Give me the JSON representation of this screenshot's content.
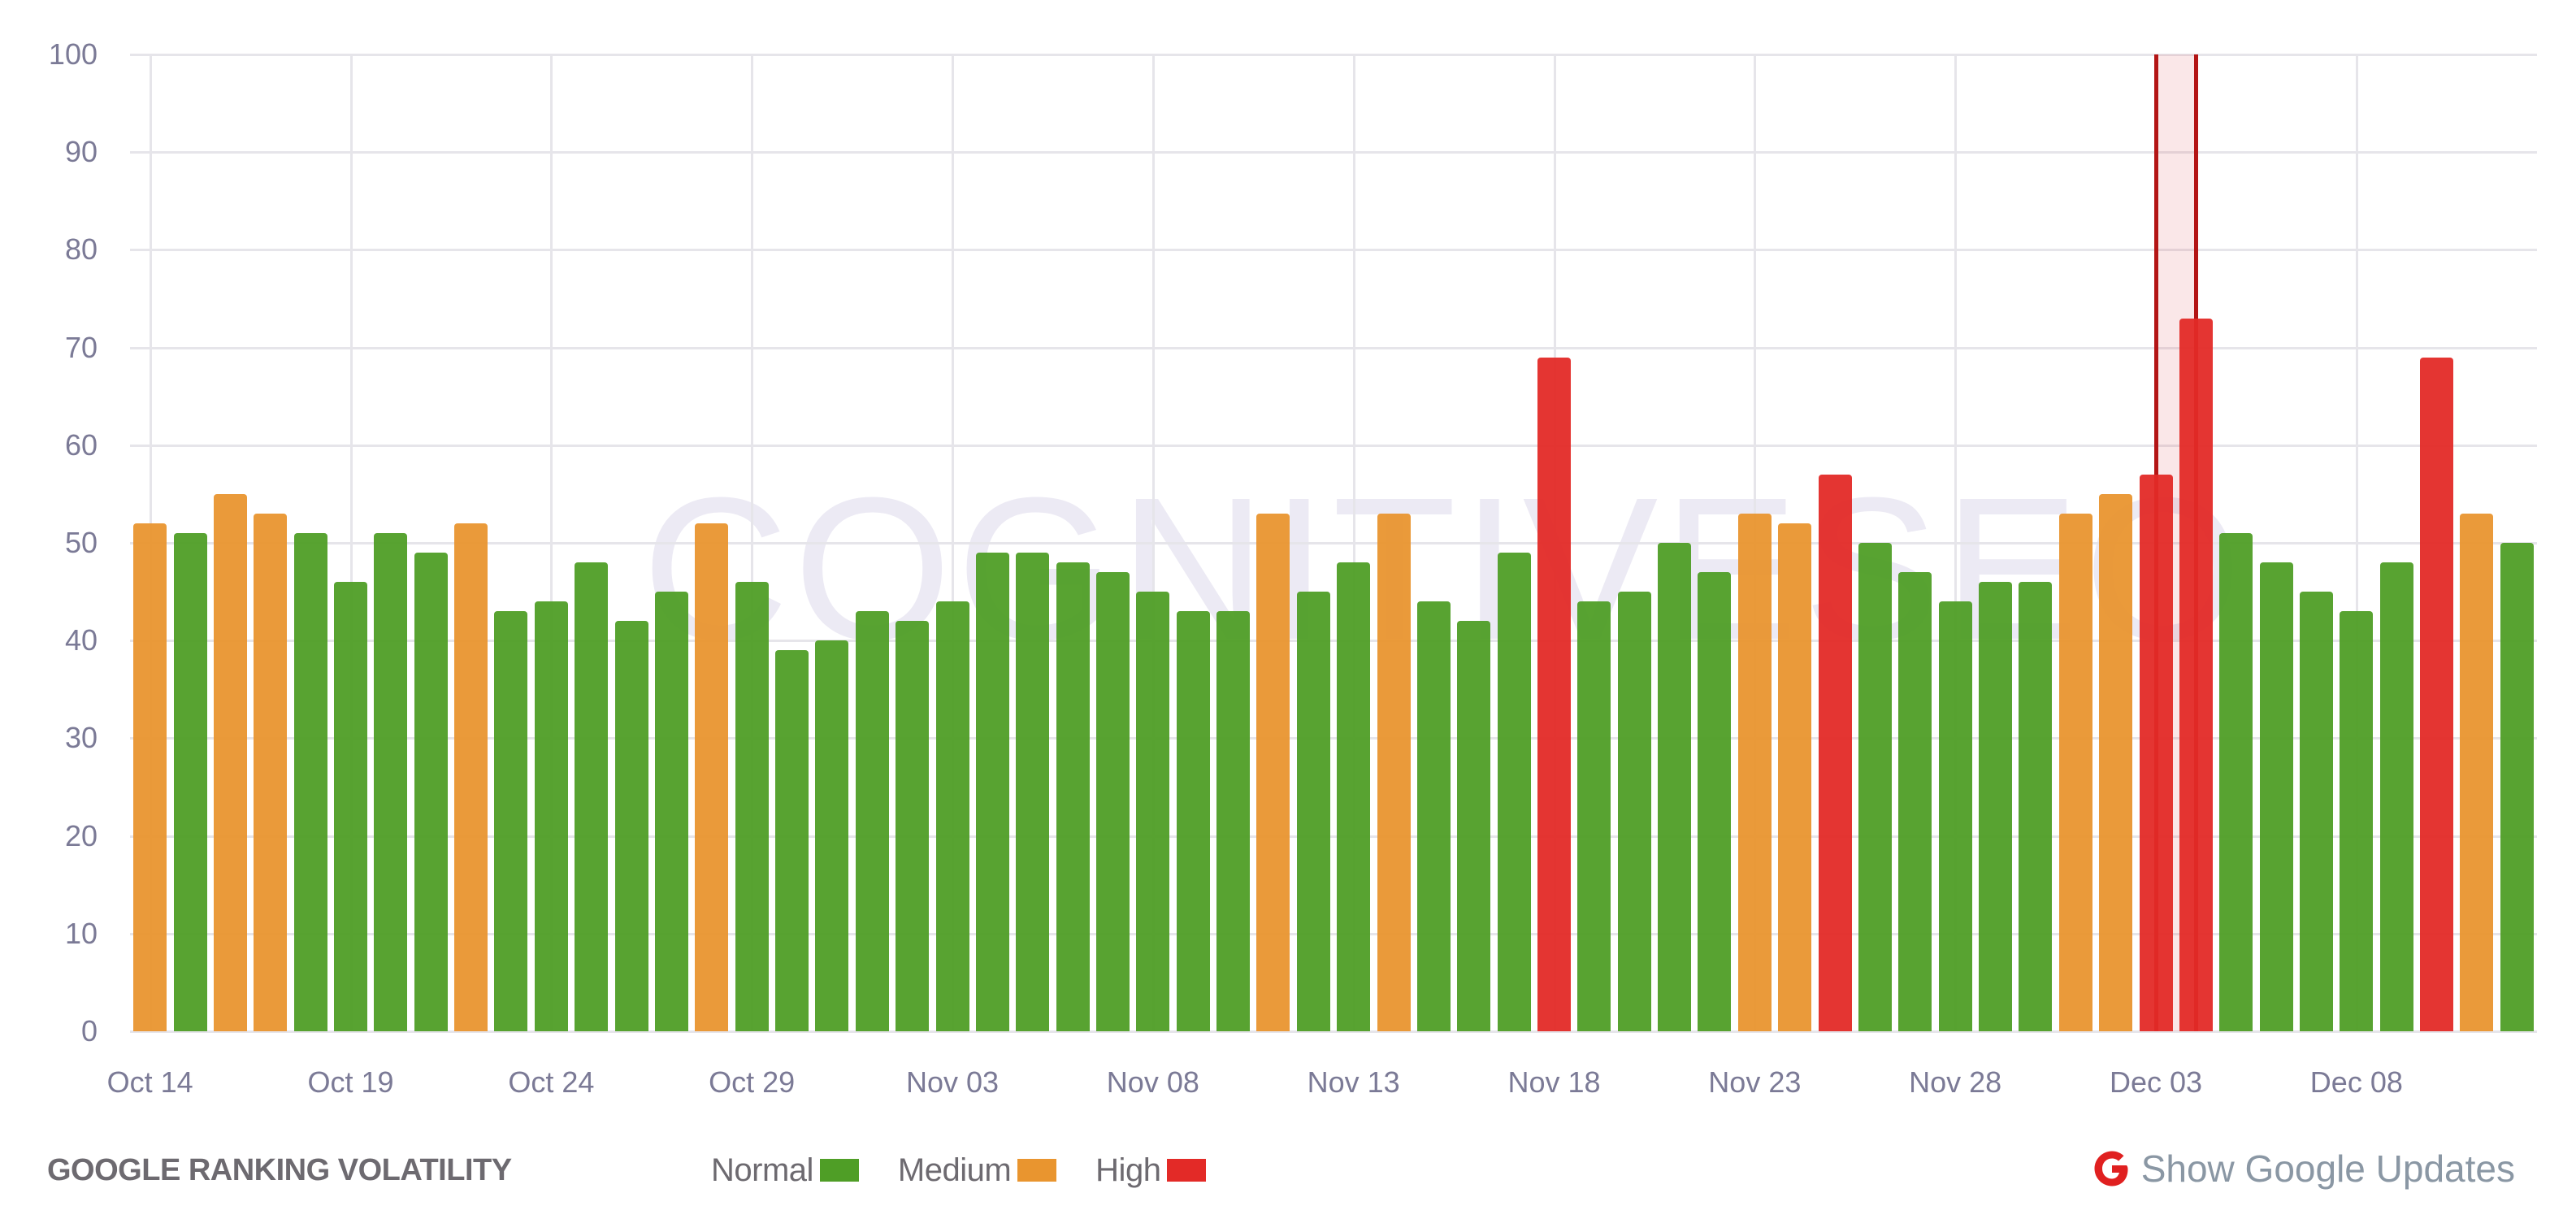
{
  "chart_data": {
    "type": "bar",
    "title": "GOOGLE RANKING VOLATILITY",
    "xlabel": "",
    "ylabel": "",
    "ylim": [
      0,
      100
    ],
    "yticks": [
      0,
      10,
      20,
      30,
      40,
      50,
      60,
      70,
      80,
      90,
      100
    ],
    "xtick_labels": [
      "Oct 14",
      "Oct 19",
      "Oct 24",
      "Oct 29",
      "Nov 03",
      "Nov 08",
      "Nov 13",
      "Nov 18",
      "Nov 23",
      "Nov 28",
      "Dec 03",
      "Dec 08"
    ],
    "grid": true,
    "legend_position": "bottom",
    "categories": [
      "Oct 14",
      "Oct 15",
      "Oct 16",
      "Oct 17",
      "Oct 18",
      "Oct 19",
      "Oct 20",
      "Oct 21",
      "Oct 22",
      "Oct 23",
      "Oct 24",
      "Oct 25",
      "Oct 26",
      "Oct 27",
      "Oct 28",
      "Oct 29",
      "Oct 30",
      "Oct 31",
      "Nov 01",
      "Nov 02",
      "Nov 03",
      "Nov 04",
      "Nov 05",
      "Nov 06",
      "Nov 07",
      "Nov 08",
      "Nov 09",
      "Nov 10",
      "Nov 11",
      "Nov 12",
      "Nov 13",
      "Nov 14",
      "Nov 15",
      "Nov 16",
      "Nov 17",
      "Nov 18",
      "Nov 19",
      "Nov 20",
      "Nov 21",
      "Nov 22",
      "Nov 23",
      "Nov 24",
      "Nov 25",
      "Nov 26",
      "Nov 27",
      "Nov 28",
      "Nov 29",
      "Nov 30",
      "Dec 01",
      "Dec 02",
      "Dec 03",
      "Dec 04",
      "Dec 05",
      "Dec 06",
      "Dec 07",
      "Dec 08",
      "Dec 09",
      "Dec 10",
      "Dec 11",
      "Dec 12"
    ],
    "values": [
      52,
      51,
      55,
      53,
      51,
      46,
      51,
      49,
      52,
      43,
      44,
      48,
      42,
      45,
      52,
      46,
      39,
      40,
      43,
      42,
      44,
      49,
      49,
      48,
      47,
      45,
      43,
      43,
      53,
      45,
      48,
      53,
      44,
      42,
      49,
      69,
      44,
      45,
      50,
      47,
      53,
      52,
      57,
      50,
      47,
      44,
      46,
      46,
      53,
      55,
      57,
      73,
      51,
      48,
      45,
      43,
      48,
      69,
      53,
      50
    ],
    "levels": [
      "medium",
      "normal",
      "medium",
      "medium",
      "normal",
      "normal",
      "normal",
      "normal",
      "medium",
      "normal",
      "normal",
      "normal",
      "normal",
      "normal",
      "medium",
      "normal",
      "normal",
      "normal",
      "normal",
      "normal",
      "normal",
      "normal",
      "normal",
      "normal",
      "normal",
      "normal",
      "normal",
      "normal",
      "medium",
      "normal",
      "normal",
      "medium",
      "normal",
      "normal",
      "normal",
      "high",
      "normal",
      "normal",
      "normal",
      "normal",
      "medium",
      "medium",
      "high",
      "normal",
      "normal",
      "normal",
      "normal",
      "normal",
      "medium",
      "medium",
      "high",
      "high",
      "normal",
      "normal",
      "normal",
      "normal",
      "normal",
      "high",
      "medium",
      "normal"
    ],
    "highlight_range": [
      "Dec 03",
      "Dec 04"
    ]
  },
  "colors": {
    "normal": "#4f9e26",
    "medium": "#e9952f",
    "high": "#e32a27",
    "grid": "#e6e5ea",
    "axis_text": "#7b7a96",
    "highlight_line": "#b31515",
    "google_icon": "#e02020"
  },
  "watermark": "COGNITIVESEO",
  "footer": {
    "title": "GOOGLE RANKING VOLATILITY",
    "legend": [
      {
        "label": "Normal",
        "key": "normal"
      },
      {
        "label": "Medium",
        "key": "medium"
      },
      {
        "label": "High",
        "key": "high"
      }
    ],
    "google_updates": {
      "icon": "google-g-icon",
      "label": "Show Google Updates"
    }
  }
}
